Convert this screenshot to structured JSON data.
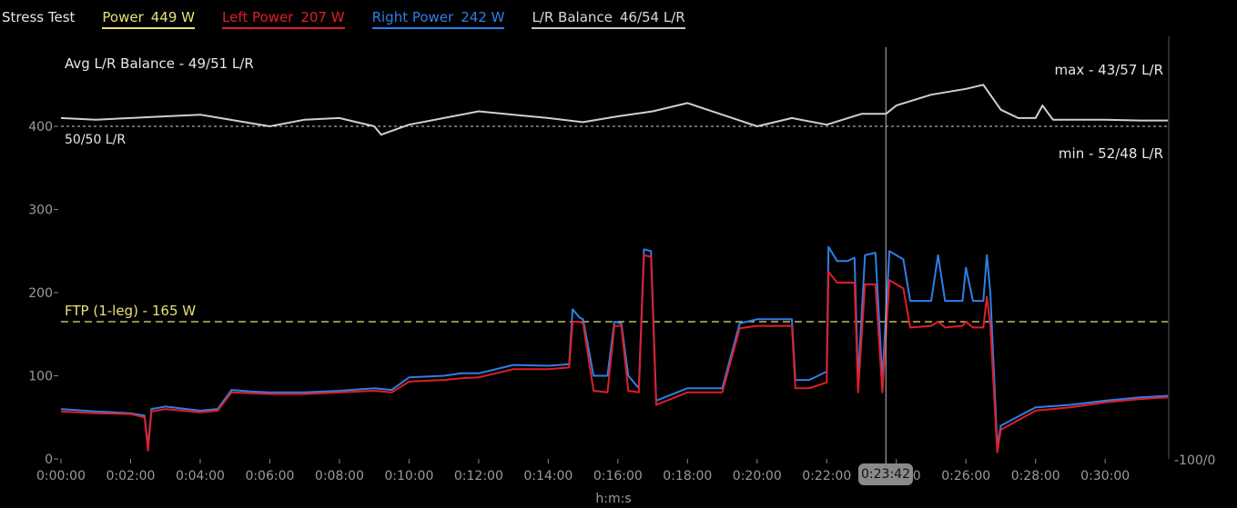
{
  "legend": {
    "title": "Stress Test",
    "items": [
      {
        "label": "Power",
        "value": "449 W",
        "color": "#e8e07a"
      },
      {
        "label": "Left Power",
        "value": "207 W",
        "color": "#e01e28"
      },
      {
        "label": "Right Power",
        "value": "242 W",
        "color": "#2f7fe6"
      },
      {
        "label": "L/R Balance",
        "value": "46/54 L/R",
        "color": "#c8c8c8"
      }
    ]
  },
  "annotations": {
    "avg_balance": "Avg L/R Balance - 49/51 L/R",
    "max_balance": "max - 43/57 L/R",
    "min_balance": "min - 52/48 L/R",
    "center_balance": "50/50 L/R",
    "ftp": "FTP (1-leg) - 165 W",
    "right_axis_label": "-100/0",
    "cursor_time": "0:23:42"
  },
  "chart_data": {
    "type": "line",
    "xlabel": "h:m:s",
    "ylabel": "",
    "xlim_minutes": [
      0,
      31.8
    ],
    "ylim": [
      0,
      400
    ],
    "yticks": [
      0,
      100,
      200,
      300,
      400
    ],
    "xticks": [
      "0:00:00",
      "0:02:00",
      "0:04:00",
      "0:06:00",
      "0:08:00",
      "0:10:00",
      "0:12:00",
      "0:14:00",
      "0:16:00",
      "0:18:00",
      "0:20:00",
      "0:22:00",
      "0:24:00",
      "0:26:00",
      "0:28:00",
      "0:30:00"
    ],
    "ftp_line": 165,
    "cursor_minute": 23.7,
    "series": [
      {
        "name": "Right Power",
        "color": "#2f7fe6",
        "points": [
          [
            0,
            60
          ],
          [
            1,
            57
          ],
          [
            2,
            55
          ],
          [
            2.4,
            52
          ],
          [
            2.5,
            15
          ],
          [
            2.6,
            60
          ],
          [
            3,
            63
          ],
          [
            4,
            58
          ],
          [
            4.5,
            60
          ],
          [
            4.9,
            83
          ],
          [
            5.5,
            81
          ],
          [
            6,
            80
          ],
          [
            7,
            80
          ],
          [
            8,
            82
          ],
          [
            9,
            85
          ],
          [
            9.5,
            83
          ],
          [
            10,
            98
          ],
          [
            11,
            100
          ],
          [
            11.5,
            103
          ],
          [
            12,
            103
          ],
          [
            13,
            113
          ],
          [
            14,
            112
          ],
          [
            14.6,
            114
          ],
          [
            14.7,
            180
          ],
          [
            14.9,
            170
          ],
          [
            15,
            168
          ],
          [
            15.3,
            100
          ],
          [
            15.7,
            100
          ],
          [
            15.9,
            165
          ],
          [
            16.1,
            163
          ],
          [
            16.3,
            100
          ],
          [
            16.6,
            85
          ],
          [
            16.75,
            252
          ],
          [
            16.95,
            250
          ],
          [
            17.1,
            70
          ],
          [
            18,
            85
          ],
          [
            19,
            85
          ],
          [
            19.5,
            163
          ],
          [
            20,
            168
          ],
          [
            21,
            168
          ],
          [
            21.1,
            95
          ],
          [
            21.5,
            95
          ],
          [
            22,
            105
          ],
          [
            22.05,
            255
          ],
          [
            22.3,
            238
          ],
          [
            22.6,
            238
          ],
          [
            22.8,
            242
          ],
          [
            22.9,
            95
          ],
          [
            23.1,
            245
          ],
          [
            23.4,
            248
          ],
          [
            23.6,
            95
          ],
          [
            23.8,
            250
          ],
          [
            24.2,
            240
          ],
          [
            24.4,
            190
          ],
          [
            25,
            190
          ],
          [
            25.2,
            245
          ],
          [
            25.4,
            190
          ],
          [
            25.9,
            190
          ],
          [
            26,
            230
          ],
          [
            26.2,
            190
          ],
          [
            26.5,
            190
          ],
          [
            26.6,
            245
          ],
          [
            26.7,
            200
          ],
          [
            26.9,
            15
          ],
          [
            27,
            40
          ],
          [
            28,
            62
          ],
          [
            29,
            65
          ],
          [
            30,
            70
          ],
          [
            31,
            74
          ],
          [
            31.8,
            76
          ]
        ]
      },
      {
        "name": "Left Power",
        "color": "#e01e28",
        "points": [
          [
            0,
            57
          ],
          [
            1,
            55
          ],
          [
            2,
            54
          ],
          [
            2.4,
            50
          ],
          [
            2.5,
            10
          ],
          [
            2.6,
            57
          ],
          [
            3,
            60
          ],
          [
            4,
            56
          ],
          [
            4.5,
            58
          ],
          [
            4.9,
            80
          ],
          [
            5.5,
            79
          ],
          [
            6,
            78
          ],
          [
            7,
            78
          ],
          [
            8,
            80
          ],
          [
            9,
            82
          ],
          [
            9.5,
            80
          ],
          [
            10,
            93
          ],
          [
            11,
            95
          ],
          [
            11.5,
            97
          ],
          [
            12,
            98
          ],
          [
            13,
            108
          ],
          [
            14,
            108
          ],
          [
            14.6,
            110
          ],
          [
            14.7,
            165
          ],
          [
            14.9,
            165
          ],
          [
            15,
            163
          ],
          [
            15.3,
            82
          ],
          [
            15.7,
            80
          ],
          [
            15.9,
            160
          ],
          [
            16.1,
            160
          ],
          [
            16.3,
            82
          ],
          [
            16.6,
            80
          ],
          [
            16.75,
            245
          ],
          [
            16.95,
            243
          ],
          [
            17.1,
            65
          ],
          [
            18,
            80
          ],
          [
            19,
            80
          ],
          [
            19.5,
            157
          ],
          [
            20,
            160
          ],
          [
            21,
            160
          ],
          [
            21.1,
            85
          ],
          [
            21.5,
            85
          ],
          [
            22,
            92
          ],
          [
            22.05,
            225
          ],
          [
            22.3,
            212
          ],
          [
            22.6,
            212
          ],
          [
            22.8,
            212
          ],
          [
            22.9,
            80
          ],
          [
            23.1,
            210
          ],
          [
            23.4,
            210
          ],
          [
            23.6,
            80
          ],
          [
            23.8,
            215
          ],
          [
            24.2,
            205
          ],
          [
            24.4,
            158
          ],
          [
            25,
            160
          ],
          [
            25.2,
            165
          ],
          [
            25.4,
            158
          ],
          [
            25.9,
            160
          ],
          [
            26,
            165
          ],
          [
            26.2,
            158
          ],
          [
            26.5,
            158
          ],
          [
            26.6,
            195
          ],
          [
            26.7,
            160
          ],
          [
            26.9,
            8
          ],
          [
            27,
            35
          ],
          [
            28,
            58
          ],
          [
            29,
            62
          ],
          [
            30,
            68
          ],
          [
            31,
            72
          ],
          [
            31.8,
            74
          ]
        ]
      },
      {
        "name": "L/R Balance",
        "color": "#d0d0d0",
        "points": [
          [
            0,
            410
          ],
          [
            1,
            408
          ],
          [
            2,
            410
          ],
          [
            3,
            412
          ],
          [
            4,
            414
          ],
          [
            5,
            407
          ],
          [
            6,
            400
          ],
          [
            7,
            408
          ],
          [
            8,
            410
          ],
          [
            9,
            400
          ],
          [
            9.2,
            390
          ],
          [
            10,
            402
          ],
          [
            11,
            410
          ],
          [
            12,
            418
          ],
          [
            13,
            414
          ],
          [
            14,
            410
          ],
          [
            15,
            405
          ],
          [
            16,
            412
          ],
          [
            17,
            418
          ],
          [
            18,
            428
          ],
          [
            19,
            414
          ],
          [
            20,
            400
          ],
          [
            21,
            410
          ],
          [
            22,
            402
          ],
          [
            23,
            415
          ],
          [
            23.7,
            415
          ],
          [
            24,
            425
          ],
          [
            25,
            438
          ],
          [
            26,
            445
          ],
          [
            26.5,
            450
          ],
          [
            27,
            420
          ],
          [
            27.5,
            410
          ],
          [
            28,
            410
          ],
          [
            28.2,
            425
          ],
          [
            28.5,
            408
          ],
          [
            29,
            408
          ],
          [
            30,
            408
          ],
          [
            31,
            407
          ],
          [
            31.8,
            407
          ]
        ]
      }
    ]
  }
}
